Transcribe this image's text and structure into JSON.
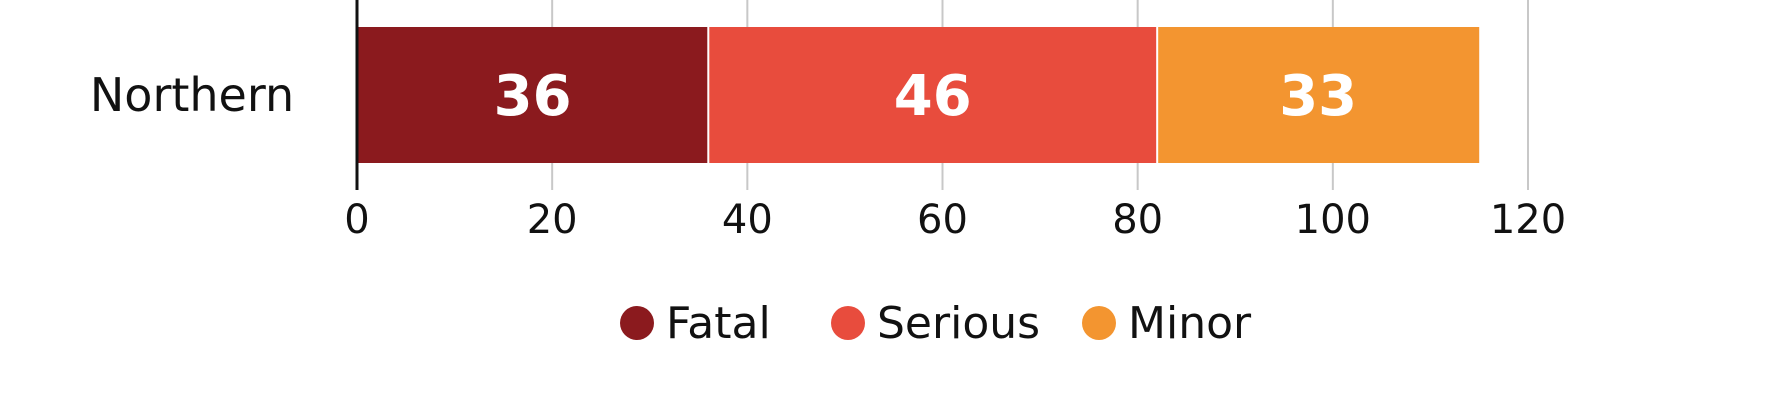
{
  "chart_data": {
    "type": "bar",
    "orientation": "horizontal",
    "stacked": true,
    "categories": [
      "Northern"
    ],
    "series": [
      {
        "name": "Fatal",
        "values": [
          36
        ],
        "color": "#8B1A1E"
      },
      {
        "name": "Serious",
        "values": [
          46
        ],
        "color": "#E84C3D"
      },
      {
        "name": "Minor",
        "values": [
          33
        ],
        "color": "#F39530"
      }
    ],
    "xlim": [
      0,
      120
    ],
    "xticks": [
      0,
      20,
      40,
      60,
      80,
      100,
      120
    ],
    "grid": true,
    "legend_position": "bottom",
    "data_labels": true
  }
}
